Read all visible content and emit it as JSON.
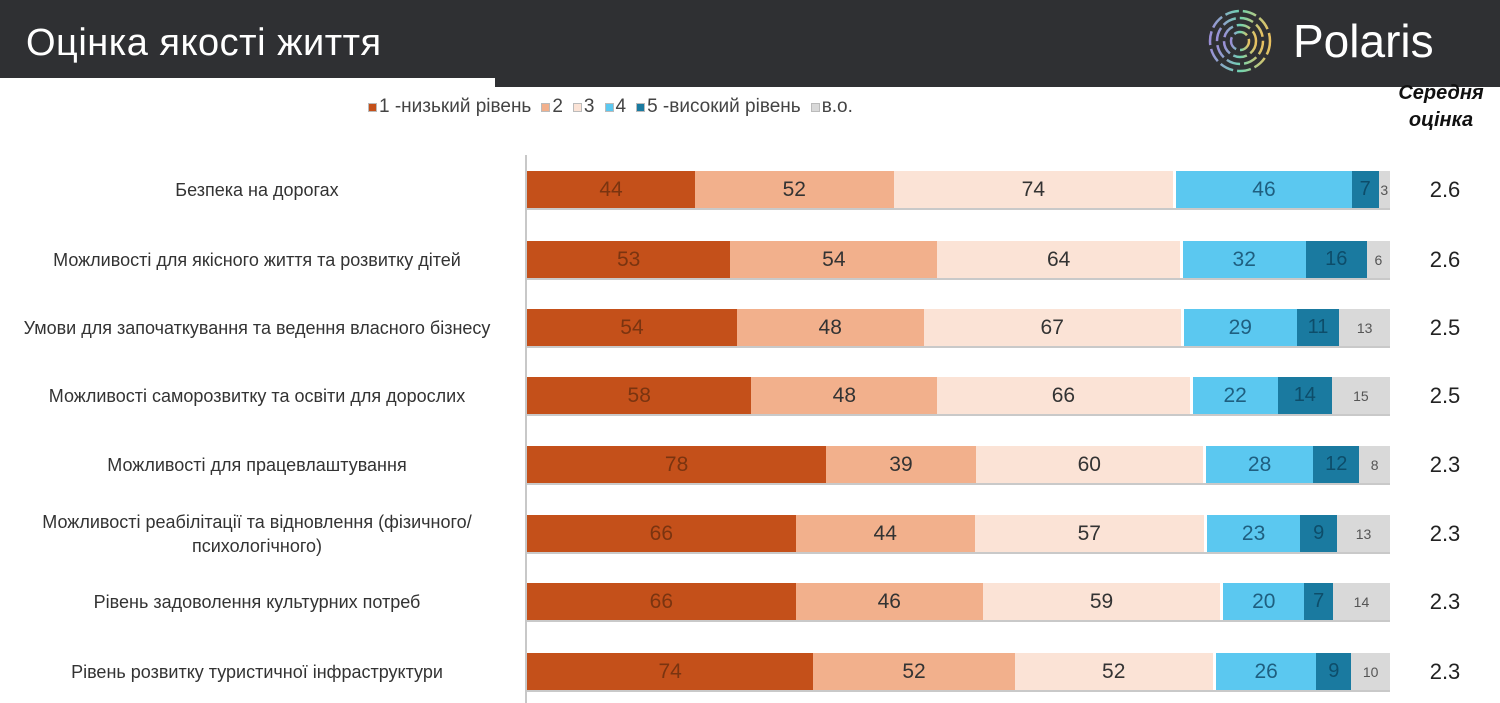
{
  "header": {
    "title": "Оцінка якості життя",
    "brand": "Polaris",
    "logo_icon": "concentric-rings-logo"
  },
  "mean_header": {
    "line1": "Середня",
    "line2": "оцінка"
  },
  "colors": {
    "header_bg": "#2f3033",
    "s1": "#c4501a",
    "s2": "#f2b08c",
    "s3": "#fbe3d6",
    "s4": "#5bc8f0",
    "s5": "#1a7aa0",
    "s6": "#d9d9d9"
  },
  "chart_data": {
    "type": "bar",
    "orientation": "horizontal",
    "stacked": true,
    "normalized": true,
    "title": "Оцінка якості життя",
    "legend_position": "top",
    "categories": [
      "Безпека на дорогах",
      "Можливості для якісного життя та розвитку дітей",
      "Умови для започаткування та ведення власного бізнесу",
      "Можливості саморозвитку та освіти для дорослих",
      "Можливості для працевлаштування",
      "Можливості реабілітації та відновлення (фізичного/психологічного)",
      "Рівень задоволення культурних потреб",
      "Рівень розвитку туристичної інфраструктури"
    ],
    "series": [
      {
        "name": "1 -низький рівень",
        "color": "#c4501a",
        "values": [
          44,
          53,
          54,
          58,
          78,
          66,
          66,
          74
        ]
      },
      {
        "name": "2",
        "color": "#f2b08c",
        "values": [
          52,
          54,
          48,
          48,
          39,
          44,
          46,
          52
        ]
      },
      {
        "name": "3",
        "color": "#fbe3d6",
        "values": [
          74,
          64,
          67,
          66,
          60,
          57,
          59,
          52
        ]
      },
      {
        "name": "4",
        "color": "#5bc8f0",
        "values": [
          46,
          32,
          29,
          22,
          28,
          23,
          20,
          26
        ]
      },
      {
        "name": "5 -високий рівень",
        "color": "#1a7aa0",
        "values": [
          7,
          16,
          11,
          14,
          12,
          9,
          7,
          9
        ]
      },
      {
        "name": "в.о.",
        "color": "#d9d9d9",
        "values": [
          3,
          6,
          13,
          15,
          8,
          13,
          14,
          10
        ]
      }
    ],
    "mean_scores": [
      "2.6",
      "2.6",
      "2.5",
      "2.5",
      "2.3",
      "2.3",
      "2.3",
      "2.3"
    ]
  }
}
